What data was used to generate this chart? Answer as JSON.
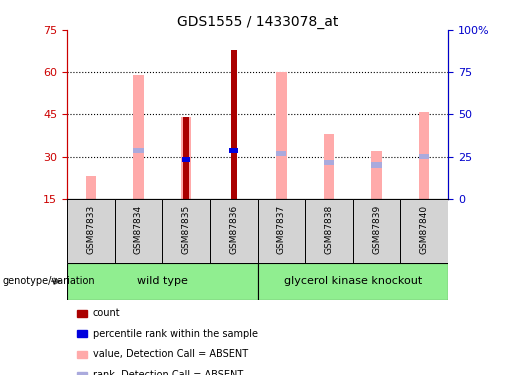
{
  "title": "GDS1555 / 1433078_at",
  "samples": [
    "GSM87833",
    "GSM87834",
    "GSM87835",
    "GSM87836",
    "GSM87837",
    "GSM87838",
    "GSM87839",
    "GSM87840"
  ],
  "pink_values": [
    23,
    59,
    44,
    null,
    60,
    38,
    32,
    46
  ],
  "blue_rank_values": [
    null,
    32,
    29,
    32,
    31,
    28,
    27,
    30
  ],
  "red_count_values": [
    null,
    null,
    44,
    68,
    null,
    null,
    null,
    null
  ],
  "ylim_left": [
    15,
    75
  ],
  "ylim_right": [
    0,
    100
  ],
  "yticks_left": [
    15,
    30,
    45,
    60,
    75
  ],
  "ytick_labels_left": [
    "15",
    "30",
    "45",
    "60",
    "75"
  ],
  "yticks_right": [
    0,
    25,
    50,
    75,
    100
  ],
  "ytick_labels_right": [
    "0",
    "25",
    "50",
    "75",
    "100%"
  ],
  "colors": {
    "red": "#aa0000",
    "pink": "#ffaaaa",
    "blue": "#0000dd",
    "lightblue": "#aaaadd",
    "dark_red": "#8b0000"
  },
  "label_color_left": "#cc0000",
  "label_color_right": "#0000cc",
  "bg_color": "white",
  "plot_bg": "white",
  "genotype_label": "genotype/variation",
  "wild_type_label": "wild type",
  "knockout_label": "glycerol kinase knockout",
  "group_color": "#90ee90",
  "sample_box_color": "#d3d3d3",
  "legend_items": [
    {
      "label": "count",
      "color": "#aa0000"
    },
    {
      "label": "percentile rank within the sample",
      "color": "#0000dd"
    },
    {
      "label": "value, Detection Call = ABSENT",
      "color": "#ffaaaa"
    },
    {
      "label": "rank, Detection Call = ABSENT",
      "color": "#aaaadd"
    }
  ]
}
